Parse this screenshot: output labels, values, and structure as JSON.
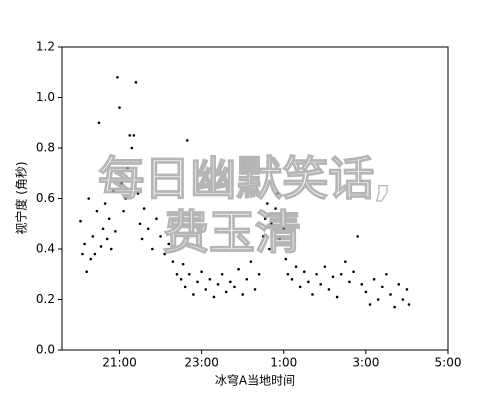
{
  "chart_data": {
    "type": "scatter",
    "xlabel": "冰穹A当地时间",
    "ylabel": "视宁度 (角秒)",
    "watermark": [
      "每日幽默笑话,",
      "费玉清"
    ],
    "color": "#000000",
    "xlim": [
      19.6,
      29
    ],
    "ylim": [
      0,
      1.2
    ],
    "xticks": [
      {
        "value": 21,
        "label": "21:00"
      },
      {
        "value": 23,
        "label": "23:00"
      },
      {
        "value": 25,
        "label": "1:00"
      },
      {
        "value": 27,
        "label": "3:00"
      },
      {
        "value": 29,
        "label": "5:00"
      }
    ],
    "yticks": [
      {
        "value": 0,
        "label": "0.0"
      },
      {
        "value": 0.2,
        "label": "0.2"
      },
      {
        "value": 0.4,
        "label": "0.4"
      },
      {
        "value": 0.6,
        "label": "0.6"
      },
      {
        "value": 0.8,
        "label": "0.8"
      },
      {
        "value": 1,
        "label": "1.0"
      },
      {
        "value": 1.2,
        "label": "1.2"
      }
    ],
    "x": [
      20.05,
      20.1,
      20.15,
      20.2,
      20.25,
      20.3,
      20.35,
      20.4,
      20.45,
      20.5,
      20.55,
      20.6,
      20.65,
      20.7,
      20.75,
      20.8,
      20.85,
      20.9,
      20.95,
      21.0,
      21.05,
      21.1,
      21.15,
      21.2,
      21.25,
      21.3,
      21.35,
      21.4,
      21.45,
      21.5,
      21.55,
      21.6,
      21.7,
      21.8,
      21.9,
      22.0,
      22.1,
      22.2,
      22.3,
      22.4,
      22.5,
      22.55,
      22.6,
      22.65,
      22.7,
      22.8,
      22.9,
      23.0,
      23.1,
      23.2,
      23.3,
      23.4,
      23.5,
      23.6,
      23.7,
      23.8,
      23.9,
      24.0,
      24.1,
      24.2,
      24.3,
      24.4,
      24.5,
      24.55,
      24.6,
      24.65,
      24.7,
      24.8,
      24.85,
      24.9,
      25.0,
      25.05,
      25.1,
      25.2,
      25.3,
      25.4,
      25.5,
      25.6,
      25.7,
      25.8,
      25.9,
      26.0,
      26.1,
      26.2,
      26.3,
      26.4,
      26.5,
      26.6,
      26.7,
      26.8,
      26.9,
      27.0,
      27.1,
      27.2,
      27.3,
      27.4,
      27.5,
      27.6,
      27.7,
      27.8,
      27.9,
      28.0,
      28.05
    ],
    "y": [
      0.51,
      0.38,
      0.42,
      0.31,
      0.6,
      0.36,
      0.45,
      0.38,
      0.55,
      0.9,
      0.41,
      0.48,
      0.58,
      0.44,
      0.52,
      0.4,
      0.63,
      0.47,
      1.08,
      0.96,
      0.66,
      0.55,
      0.6,
      0.72,
      0.85,
      0.8,
      0.85,
      1.06,
      0.62,
      0.5,
      0.44,
      0.56,
      0.48,
      0.4,
      0.52,
      0.45,
      0.38,
      0.42,
      0.35,
      0.3,
      0.28,
      0.34,
      0.25,
      0.83,
      0.3,
      0.22,
      0.27,
      0.31,
      0.24,
      0.28,
      0.21,
      0.26,
      0.3,
      0.23,
      0.27,
      0.25,
      0.32,
      0.22,
      0.28,
      0.35,
      0.24,
      0.3,
      0.45,
      0.52,
      0.58,
      0.4,
      0.5,
      0.56,
      0.62,
      0.44,
      0.48,
      0.36,
      0.3,
      0.28,
      0.33,
      0.25,
      0.31,
      0.27,
      0.22,
      0.3,
      0.26,
      0.33,
      0.24,
      0.29,
      0.21,
      0.3,
      0.35,
      0.27,
      0.31,
      0.45,
      0.26,
      0.23,
      0.18,
      0.28,
      0.2,
      0.25,
      0.3,
      0.22,
      0.17,
      0.26,
      0.2,
      0.24,
      0.18
    ]
  }
}
